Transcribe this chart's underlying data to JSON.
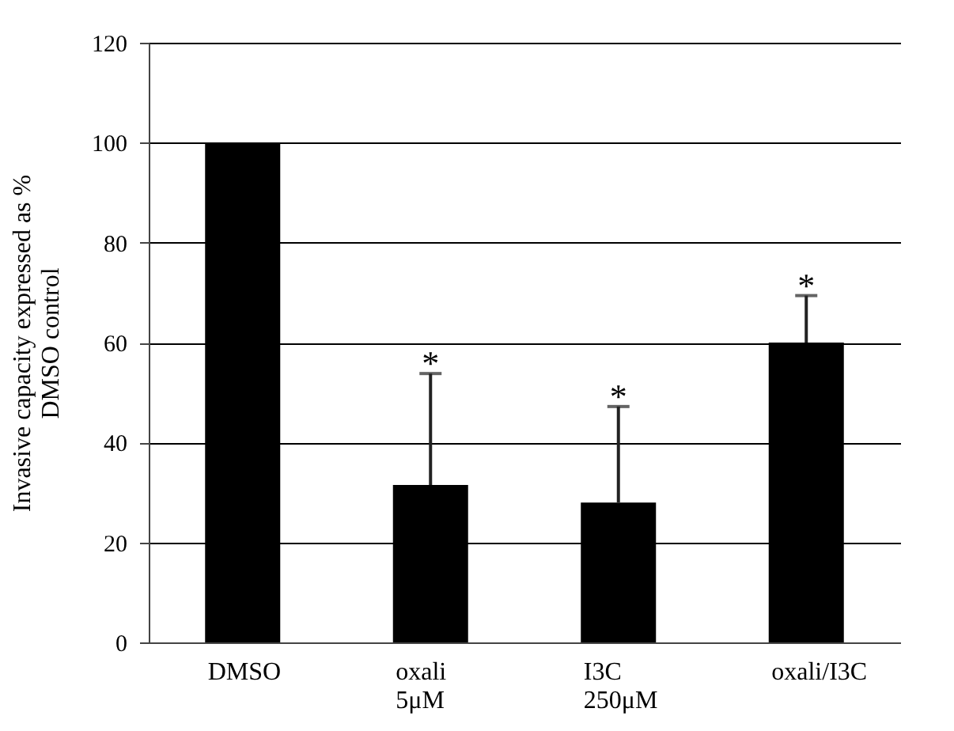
{
  "chart_data": {
    "type": "bar",
    "ylabel": "Invasive capacity expressed as % DMSO control",
    "categories": [
      "DMSO",
      "oxali 5μM",
      "I3C 250μM",
      "oxali/I3C"
    ],
    "values": [
      100,
      31.5,
      28,
      60
    ],
    "color": "#000000",
    "errors": [
      null,
      [
        31.5,
        53.8
      ],
      [
        28,
        47.2
      ],
      [
        60,
        69.4
      ]
    ],
    "ylim": [
      0,
      120
    ],
    "yticks": [
      0,
      20,
      40,
      60,
      80,
      100,
      120
    ],
    "grid": "y",
    "annotations": [
      {
        "text": "*",
        "x": "oxali 5μM",
        "y": 53.8
      },
      {
        "text": "*",
        "x": "I3C 250μM",
        "y": 47.2
      },
      {
        "text": "*",
        "x": "oxali/I3C",
        "y": 69.4
      }
    ]
  }
}
